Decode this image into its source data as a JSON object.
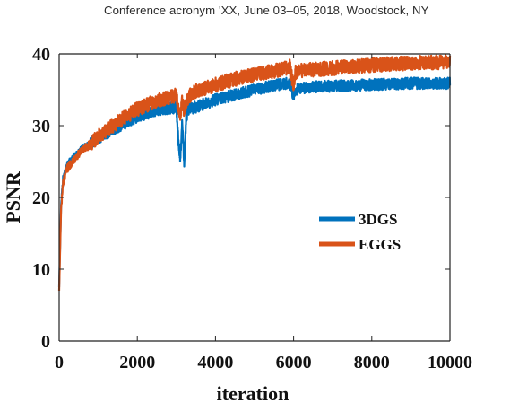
{
  "header": {
    "running_head": "Conference acronym 'XX, June 03–05, 2018, Woodstock, NY"
  },
  "chart_data": {
    "type": "line",
    "title": "",
    "xlabel": "iteration",
    "ylabel": "PSNR",
    "xlim": [
      0,
      10000
    ],
    "ylim": [
      0,
      40
    ],
    "xticks": [
      0,
      2000,
      4000,
      6000,
      8000,
      10000
    ],
    "xtick_labels": [
      "0",
      "2000",
      "4000",
      "6000",
      "8000",
      "10000"
    ],
    "yticks": [
      0,
      10,
      20,
      30,
      40
    ],
    "ytick_labels": [
      "0",
      "10",
      "20",
      "30",
      "40"
    ],
    "grid": false,
    "legend_position": "right-middle",
    "x": [
      0,
      50,
      100,
      200,
      400,
      600,
      800,
      1000,
      1500,
      2000,
      2500,
      3000,
      3050,
      3100,
      3150,
      3200,
      3250,
      3300,
      3500,
      4000,
      4500,
      5000,
      5500,
      5900,
      6000,
      6050,
      6100,
      6500,
      7000,
      7500,
      8000,
      8500,
      9000,
      9500,
      10000
    ],
    "series": [
      {
        "name": "3DGS",
        "color": "#0072BD",
        "noise": 0.8,
        "values": [
          7.5,
          19.0,
          22.5,
          24.5,
          25.8,
          26.8,
          27.5,
          28.3,
          29.8,
          31.2,
          32.2,
          32.5,
          28.0,
          25.5,
          30.5,
          24.5,
          31.0,
          32.3,
          32.6,
          33.6,
          34.3,
          35.0,
          35.6,
          36.0,
          34.0,
          34.8,
          35.2,
          35.4,
          35.5,
          35.6,
          35.7,
          35.8,
          35.9,
          35.9,
          35.9
        ]
      },
      {
        "name": "EGGS",
        "color": "#D95319",
        "noise": 1.0,
        "values": [
          7.0,
          18.5,
          22.0,
          24.0,
          25.5,
          26.5,
          27.4,
          28.5,
          30.5,
          32.3,
          33.5,
          34.2,
          32.5,
          31.5,
          33.5,
          32.0,
          33.2,
          34.0,
          34.8,
          35.7,
          36.5,
          37.1,
          37.6,
          38.2,
          35.5,
          37.4,
          37.6,
          37.8,
          38.0,
          38.2,
          38.4,
          38.6,
          38.7,
          38.8,
          38.9
        ]
      }
    ]
  }
}
